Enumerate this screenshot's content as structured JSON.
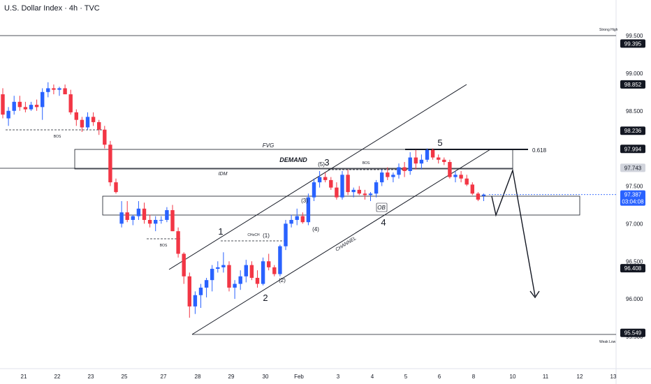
{
  "header": {
    "title": "U.S. Dollar Index · 4h · TVC"
  },
  "colors": {
    "up": "#2962ff",
    "down": "#f23645",
    "grid": "#ffffff",
    "line": "#131722",
    "current": "#2962ff"
  },
  "chart_data": {
    "type": "candlestick",
    "title": "U.S. Dollar Index · 4h · TVC",
    "ylim": [
      95.35,
      99.65
    ],
    "y_ticks": [
      99.5,
      99.0,
      98.5,
      98.0,
      97.5,
      97.0,
      96.5,
      96.0,
      95.5
    ],
    "y_tick_labels": [
      "99.500",
      "99.000",
      "98.500",
      "98.000",
      "97.500",
      "97.000",
      "96.500",
      "96.000",
      "95.500"
    ],
    "price_labels": [
      {
        "value": 99.395,
        "text": "99.395",
        "style": "dark"
      },
      {
        "value": 98.852,
        "text": "98.852",
        "style": "dark"
      },
      {
        "value": 98.236,
        "text": "98.236",
        "style": "dark"
      },
      {
        "value": 97.994,
        "text": "97.994",
        "style": "dark"
      },
      {
        "value": 97.743,
        "text": "97.743",
        "style": "gray"
      },
      {
        "value": 97.387,
        "text": "97.387",
        "text2": "03:04:08",
        "style": "blue"
      },
      {
        "value": 96.408,
        "text": "96.408",
        "style": "dark"
      },
      {
        "value": 95.549,
        "text": "95.549",
        "style": "dark"
      }
    ],
    "x_tick_labels": [
      "21",
      "22",
      "23",
      "25",
      "27",
      "28",
      "29",
      "30",
      "Feb",
      "3",
      "4",
      "5",
      "6",
      "8",
      "10",
      "11",
      "12",
      "13"
    ],
    "candles": [
      [
        98.72,
        98.8,
        98.4,
        98.45
      ],
      [
        98.4,
        98.55,
        98.3,
        98.5
      ],
      [
        98.5,
        98.7,
        98.45,
        98.62
      ],
      [
        98.62,
        98.7,
        98.5,
        98.55
      ],
      [
        98.55,
        98.62,
        98.48,
        98.52
      ],
      [
        98.52,
        98.62,
        98.5,
        98.58
      ],
      [
        98.58,
        98.65,
        98.5,
        98.55
      ],
      [
        98.55,
        98.8,
        98.38,
        98.75
      ],
      [
        98.75,
        98.88,
        98.68,
        98.8
      ],
      [
        98.8,
        98.85,
        98.72,
        98.78
      ],
      [
        98.78,
        98.82,
        98.7,
        98.8
      ],
      [
        98.8,
        98.85,
        98.72,
        98.72
      ],
      [
        98.72,
        98.78,
        98.45,
        98.48
      ],
      [
        98.48,
        98.52,
        98.3,
        98.38
      ],
      [
        98.38,
        98.42,
        98.22,
        98.28
      ],
      [
        98.28,
        98.48,
        98.25,
        98.42
      ],
      [
        98.42,
        98.48,
        98.3,
        98.35
      ],
      [
        98.35,
        98.38,
        98.18,
        98.25
      ],
      [
        98.25,
        98.3,
        98.0,
        98.05
      ],
      [
        98.05,
        98.1,
        97.5,
        97.55
      ],
      [
        97.55,
        97.6,
        97.4,
        97.42
      ],
      [
        97.0,
        97.3,
        96.95,
        97.15
      ],
      [
        97.15,
        97.3,
        97.02,
        97.05
      ],
      [
        97.05,
        97.12,
        96.98,
        97.1
      ],
      [
        97.1,
        97.3,
        97.05,
        97.2
      ],
      [
        97.2,
        97.28,
        97.0,
        97.05
      ],
      [
        97.05,
        97.12,
        96.95,
        97.0
      ],
      [
        97.0,
        97.1,
        96.9,
        97.05
      ],
      [
        97.05,
        97.1,
        97.0,
        97.05
      ],
      [
        97.05,
        97.22,
        97.02,
        97.18
      ],
      [
        97.18,
        97.25,
        96.9,
        96.9
      ],
      [
        96.9,
        96.95,
        96.55,
        96.6
      ],
      [
        96.6,
        96.62,
        96.2,
        96.3
      ],
      [
        96.3,
        96.35,
        95.75,
        95.9
      ],
      [
        95.9,
        96.1,
        95.8,
        96.05
      ],
      [
        96.05,
        96.2,
        95.88,
        96.15
      ],
      [
        96.15,
        96.28,
        96.02,
        96.25
      ],
      [
        96.25,
        96.45,
        96.1,
        96.4
      ],
      [
        96.4,
        96.5,
        96.35,
        96.42
      ],
      [
        96.42,
        96.62,
        96.35,
        96.45
      ],
      [
        96.45,
        96.5,
        96.1,
        96.15
      ],
      [
        96.15,
        96.25,
        96.0,
        96.2
      ],
      [
        96.2,
        96.38,
        96.12,
        96.3
      ],
      [
        96.3,
        96.52,
        96.22,
        96.45
      ],
      [
        96.45,
        96.5,
        96.25,
        96.28
      ],
      [
        96.28,
        96.38,
        96.15,
        96.2
      ],
      [
        96.2,
        96.55,
        96.18,
        96.5
      ],
      [
        96.5,
        96.6,
        96.38,
        96.42
      ],
      [
        96.42,
        96.45,
        96.3,
        96.33
      ],
      [
        96.33,
        96.72,
        96.3,
        96.7
      ],
      [
        96.7,
        97.05,
        96.65,
        97.0
      ],
      [
        97.0,
        97.12,
        96.95,
        97.05
      ],
      [
        97.05,
        97.2,
        96.98,
        97.1
      ],
      [
        97.1,
        97.15,
        97.0,
        97.02
      ],
      [
        97.02,
        97.4,
        96.98,
        97.35
      ],
      [
        97.35,
        97.6,
        97.3,
        97.55
      ],
      [
        97.55,
        97.7,
        97.48,
        97.62
      ],
      [
        97.62,
        97.68,
        97.55,
        97.58
      ],
      [
        97.58,
        97.62,
        97.45,
        97.48
      ],
      [
        97.48,
        97.55,
        97.32,
        97.35
      ],
      [
        97.35,
        97.7,
        97.32,
        97.65
      ],
      [
        97.65,
        97.72,
        97.38,
        97.42
      ],
      [
        97.42,
        97.48,
        97.35,
        97.45
      ],
      [
        97.45,
        97.5,
        97.38,
        97.4
      ],
      [
        97.4,
        97.45,
        97.32,
        97.38
      ],
      [
        97.38,
        97.42,
        97.3,
        97.4
      ],
      [
        97.4,
        97.58,
        97.35,
        97.55
      ],
      [
        97.55,
        97.72,
        97.5,
        97.68
      ],
      [
        97.68,
        97.75,
        97.58,
        97.62
      ],
      [
        97.62,
        97.68,
        97.55,
        97.65
      ],
      [
        97.65,
        97.8,
        97.6,
        97.75
      ],
      [
        97.75,
        97.82,
        97.62,
        97.7
      ],
      [
        97.7,
        97.95,
        97.65,
        97.88
      ],
      [
        97.88,
        97.98,
        97.72,
        97.8
      ],
      [
        97.8,
        97.92,
        97.72,
        97.85
      ],
      [
        97.85,
        98.0,
        97.82,
        97.98
      ],
      [
        97.98,
        98.0,
        97.85,
        97.88
      ],
      [
        97.88,
        97.92,
        97.8,
        97.85
      ],
      [
        97.85,
        97.88,
        97.78,
        97.82
      ],
      [
        97.82,
        97.85,
        97.6,
        97.62
      ],
      [
        97.62,
        97.7,
        97.55,
        97.65
      ],
      [
        97.65,
        97.7,
        97.55,
        97.6
      ],
      [
        97.6,
        97.65,
        97.5,
        97.52
      ],
      [
        97.52,
        97.55,
        97.38,
        97.4
      ],
      [
        97.4,
        97.42,
        97.3,
        97.32
      ],
      [
        97.37,
        97.4,
        97.3,
        97.387
      ]
    ],
    "annotations": {
      "strong_high": {
        "label": "Strong High",
        "value": 99.5
      },
      "weak_low": {
        "label": "Weak Low",
        "value": 95.549
      },
      "fvg_label": "FVG",
      "demand_label": "DEMAND",
      "idm_label": "IDM",
      "fib_label": "0.618",
      "channel_label": "CHANNEL",
      "bos_label": "BOS",
      "choch_label": "CHoCH",
      "ob_label": "OB",
      "waves": [
        "1",
        "2",
        "3",
        "4",
        "5"
      ],
      "sub_waves": [
        "(1)",
        "(2)",
        "(3)",
        "(4)",
        "(5)"
      ]
    }
  }
}
